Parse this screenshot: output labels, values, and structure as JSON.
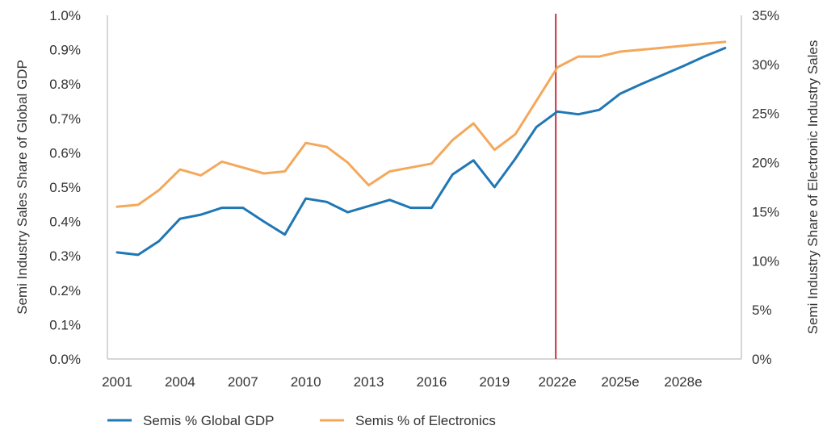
{
  "chart_data": {
    "type": "line",
    "title": "",
    "xlabel": "",
    "ylabel": "Semi Industry Sales Share of Global GDP",
    "y2label": "Semi Industry Share of Electronic Industry Sales",
    "x": [
      "2001",
      "2002",
      "2003",
      "2004",
      "2005",
      "2006",
      "2007",
      "2008",
      "2009",
      "2010",
      "2011",
      "2012",
      "2013",
      "2014",
      "2015",
      "2016",
      "2017",
      "2018",
      "2019",
      "2020",
      "2021",
      "2022e",
      "2023e",
      "2024e",
      "2025e",
      "2026e",
      "2027e",
      "2028e",
      "2029e",
      "2030e"
    ],
    "x_tick_labels": [
      "2001",
      "2004",
      "2007",
      "2010",
      "2013",
      "2016",
      "2019",
      "2022e",
      "2025e",
      "2028e"
    ],
    "ylim": [
      0,
      1.0
    ],
    "y_ticks": [
      "0.0%",
      "0.1%",
      "0.2%",
      "0.3%",
      "0.4%",
      "0.5%",
      "0.6%",
      "0.7%",
      "0.8%",
      "0.9%",
      "1.0%"
    ],
    "y2lim": [
      0,
      35
    ],
    "y2_ticks": [
      "0%",
      "5%",
      "10%",
      "15%",
      "20%",
      "25%",
      "30%",
      "35%"
    ],
    "vline_x": "2022e",
    "grid": false,
    "legend_position": "bottom-left",
    "series": [
      {
        "name": "Semis % Global GDP",
        "axis": "left",
        "color": "#1f77b4",
        "values": [
          0.31,
          0.303,
          0.343,
          0.408,
          0.42,
          0.44,
          0.44,
          0.4,
          0.362,
          0.467,
          0.457,
          0.427,
          0.445,
          0.463,
          0.44,
          0.44,
          0.537,
          0.578,
          0.5,
          0.583,
          0.675,
          0.72,
          0.712,
          0.725,
          0.772,
          0.8,
          0.826,
          0.852,
          0.88,
          0.905
        ]
      },
      {
        "name": "Semis % of Electronics",
        "axis": "right",
        "color": "#f4a85c",
        "values": [
          15.5,
          15.7,
          17.2,
          19.3,
          18.7,
          20.1,
          19.5,
          18.9,
          19.1,
          22.0,
          21.6,
          20.0,
          17.7,
          19.1,
          19.5,
          19.9,
          22.3,
          24.0,
          21.3,
          22.9,
          26.3,
          29.7,
          30.8,
          30.8,
          31.3,
          31.5,
          31.7,
          31.9,
          32.1,
          32.3
        ]
      }
    ]
  }
}
